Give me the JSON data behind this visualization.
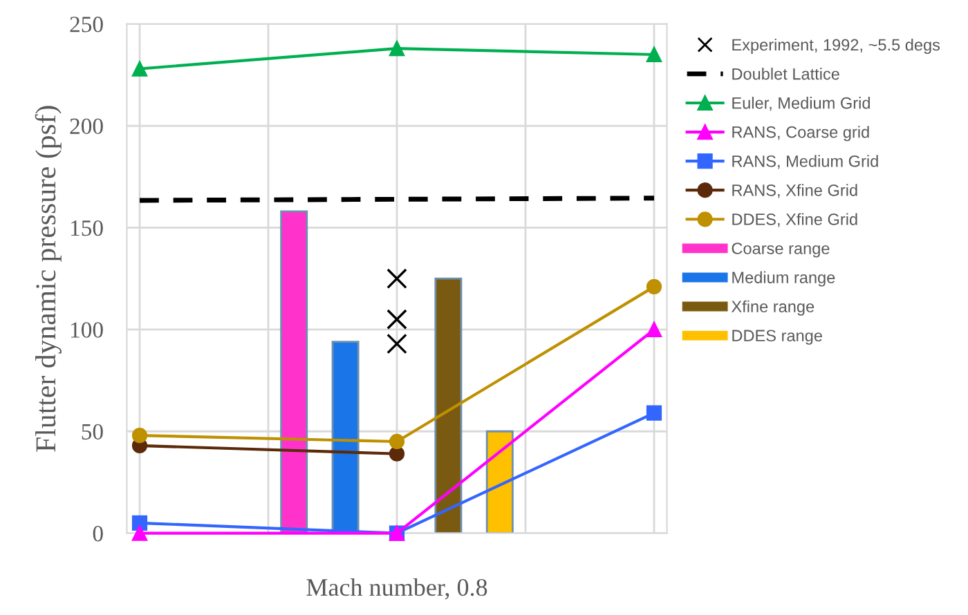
{
  "chart_data": {
    "type": "line",
    "xlabel": "Mach number, 0.8",
    "ylabel": "Flutter dynamic pressure (psf)",
    "categories": [
      null,
      null,
      null,
      null,
      null,
      null,
      null,
      null,
      null,
      null,
      null,
      null,
      null,
      null,
      null,
      null,
      null,
      null,
      null,
      null,
      null
    ],
    "ylim": [
      0,
      250
    ],
    "yticks": [
      0,
      50,
      100,
      150,
      200,
      250
    ],
    "grid": true,
    "legend": "right",
    "series": [
      {
        "name": "Experiment, 1992, ~5.5 degs",
        "type": "scatter",
        "marker": "cross",
        "color": "#000000",
        "values": [
          null,
          null,
          null,
          null,
          null,
          null,
          null,
          null,
          null,
          null,
          125,
          null,
          null,
          null,
          null,
          null,
          null,
          null,
          null,
          null,
          null
        ]
      },
      {
        "type": "scatter",
        "marker": "cross",
        "color": "#000000",
        "values": [
          null,
          null,
          null,
          null,
          null,
          null,
          null,
          null,
          null,
          null,
          105,
          null,
          null,
          null,
          null,
          null,
          null,
          null,
          null,
          null,
          null
        ]
      },
      {
        "type": "scatter",
        "marker": "cross",
        "color": "#000000",
        "values": [
          null,
          null,
          null,
          null,
          null,
          null,
          null,
          null,
          null,
          null,
          93,
          null,
          null,
          null,
          null,
          null,
          null,
          null,
          null,
          null,
          null
        ]
      },
      {
        "name": "Doublet Lattice",
        "line_style": "dashed",
        "marker": "none",
        "color": "#000000",
        "values": [
          163.4,
          null,
          null,
          null,
          null,
          null,
          null,
          null,
          null,
          null,
          null,
          null,
          null,
          null,
          null,
          null,
          null,
          null,
          null,
          null,
          164.5
        ]
      },
      {
        "name": "Euler, Medium Grid",
        "marker": "triangle",
        "color": "#00b050",
        "values": [
          228,
          null,
          null,
          null,
          null,
          null,
          null,
          null,
          null,
          null,
          238,
          null,
          null,
          null,
          null,
          null,
          null,
          null,
          null,
          null,
          235
        ]
      },
      {
        "name": "RANS, Coarse grid",
        "marker": "triangle",
        "color": "#ff00ff",
        "values": [
          0,
          null,
          null,
          null,
          null,
          null,
          null,
          null,
          null,
          null,
          0,
          null,
          null,
          null,
          null,
          null,
          null,
          null,
          null,
          null,
          100
        ]
      },
      {
        "name": "RANS, Medium Grid",
        "marker": "square",
        "color": "#3366ff",
        "values": [
          5,
          null,
          null,
          null,
          null,
          null,
          null,
          null,
          null,
          null,
          0,
          null,
          null,
          null,
          null,
          null,
          null,
          null,
          null,
          null,
          59
        ]
      },
      {
        "name": "RANS, Xfine Grid",
        "marker": "circle",
        "color": "#5c2a0a",
        "values": [
          43,
          null,
          null,
          null,
          null,
          null,
          null,
          null,
          null,
          null,
          39,
          null,
          null,
          null,
          null,
          null,
          null,
          null,
          null,
          null,
          null
        ]
      },
      {
        "name": "DDES, Xfine Grid",
        "marker": "circle",
        "color": "#bf9000",
        "values": [
          48,
          null,
          null,
          null,
          null,
          null,
          null,
          null,
          null,
          null,
          45,
          null,
          null,
          null,
          null,
          null,
          null,
          null,
          null,
          null,
          121
        ]
      },
      {
        "name": "Coarse range",
        "type": "bar",
        "color": "#ff33cc",
        "values": [
          null,
          null,
          null,
          null,
          null,
          null,
          158,
          null,
          null,
          null,
          null,
          null,
          null,
          null,
          null,
          null,
          null,
          null,
          null,
          null,
          null
        ]
      },
      {
        "name": "Medium range",
        "type": "bar",
        "color": "#1a75e8",
        "values": [
          null,
          null,
          null,
          null,
          null,
          null,
          null,
          null,
          94,
          null,
          null,
          null,
          null,
          null,
          null,
          null,
          null,
          null,
          null,
          null,
          null
        ]
      },
      {
        "name": "Xfine range",
        "type": "bar",
        "color": "#7a5a10",
        "values": [
          null,
          null,
          null,
          null,
          null,
          null,
          null,
          null,
          null,
          null,
          null,
          null,
          125,
          null,
          null,
          null,
          null,
          null,
          null,
          null,
          null
        ]
      },
      {
        "name": "DDES range",
        "type": "bar",
        "color": "#ffc000",
        "values": [
          null,
          null,
          null,
          null,
          null,
          null,
          null,
          null,
          null,
          null,
          null,
          null,
          null,
          null,
          50,
          null,
          null,
          null,
          null,
          null,
          null
        ]
      }
    ]
  }
}
